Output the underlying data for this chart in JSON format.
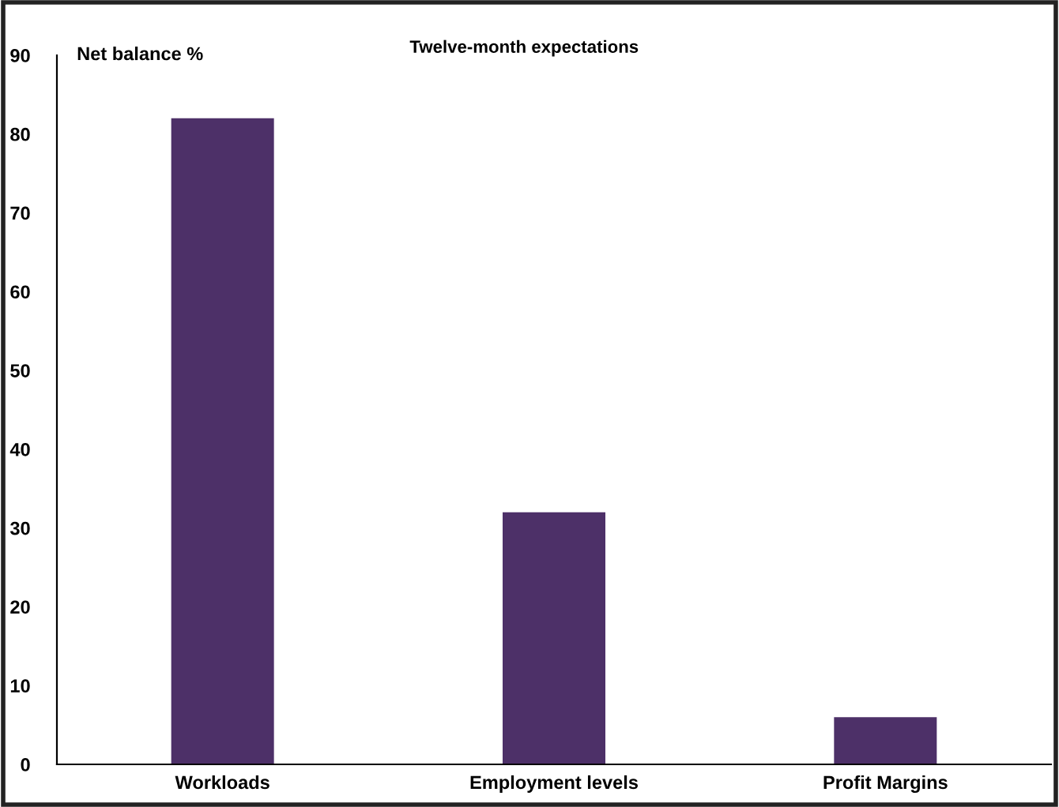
{
  "chart_data": {
    "type": "bar",
    "title": "Twelve-month expectations",
    "ylabel": "Net balance %",
    "categories": [
      "Workloads",
      "Employment levels",
      "Profit Margins"
    ],
    "values": [
      82,
      32,
      6
    ],
    "color": "#4d3068",
    "ylim": [
      0,
      90
    ],
    "yticks": [
      0,
      10,
      20,
      30,
      40,
      50,
      60,
      70,
      80,
      90
    ],
    "grid": false,
    "legend": false
  }
}
